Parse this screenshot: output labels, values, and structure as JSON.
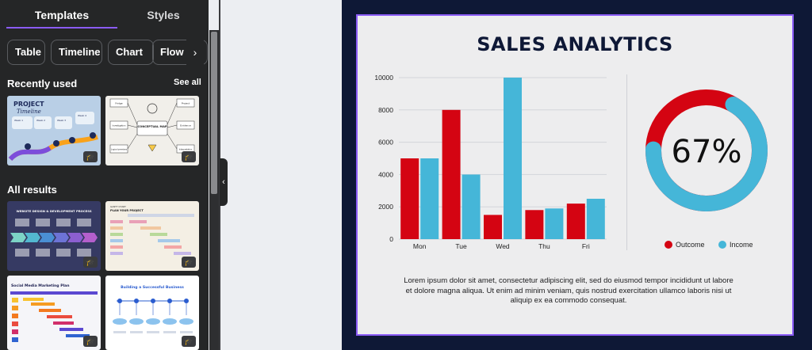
{
  "sidebar": {
    "tabs": [
      {
        "label": "Templates"
      },
      {
        "label": "Styles"
      }
    ],
    "filters": [
      "Table",
      "Timeline",
      "Chart",
      "Flow ch"
    ],
    "filters_next_icon": "chevron-right-icon",
    "recently_used": {
      "title": "Recently used",
      "see_all": "See all",
      "items": [
        {
          "title": "PROJECT",
          "subtitle": "Timeline",
          "labels": [
            "Week 1",
            "Week 2",
            "Week 3",
            "Week 4"
          ]
        },
        {
          "title": "CONCEPTUAL MAP",
          "labels": [
            "Fridge",
            "Project",
            "Investigation",
            "Evidence",
            "Logical premises",
            "Interpretation"
          ]
        }
      ]
    },
    "all_results": {
      "title": "All results",
      "items": [
        {
          "title": "WEBSITE DESIGN & DEVELOPMENT PROCESS"
        },
        {
          "title": "PLAN YOUR PROJECT",
          "subtitle": "GANTT CHART"
        },
        {
          "title": "Social Media Marketing Plan"
        },
        {
          "title": "Building a Successful Business"
        }
      ]
    }
  },
  "slide": {
    "title": "SALES ANALYTICS",
    "body": "Lorem ipsum dolor sit amet, consectetur adipiscing elit, sed do eiusmod tempor incididunt ut labore et dolore magna aliqua. Ut enim ad minim veniam, quis nostrud exercitation ullamco laboris nisi ut aliquip ex ea commodo consequat.",
    "colors": {
      "outcome": "#d40412",
      "income": "#45b6d8",
      "frame": "#0e1836",
      "selection": "#8b5cf6"
    }
  },
  "chart_data": [
    {
      "type": "bar",
      "categories": [
        "Mon",
        "Tue",
        "Wed",
        "Thu",
        "Fri"
      ],
      "series": [
        {
          "name": "Outcome",
          "values": [
            5000,
            8000,
            1500,
            1800,
            2200
          ]
        },
        {
          "name": "Income",
          "values": [
            5000,
            4000,
            10000,
            1900,
            2500
          ]
        }
      ],
      "ylim": [
        0,
        10000
      ],
      "yticks": [
        0,
        2000,
        4000,
        6000,
        8000,
        10000
      ],
      "grid": true
    },
    {
      "type": "pie",
      "labels": [
        "Outcome",
        "Income"
      ],
      "values": [
        33,
        67
      ],
      "center_label": "67%",
      "legend": "bottom"
    }
  ]
}
